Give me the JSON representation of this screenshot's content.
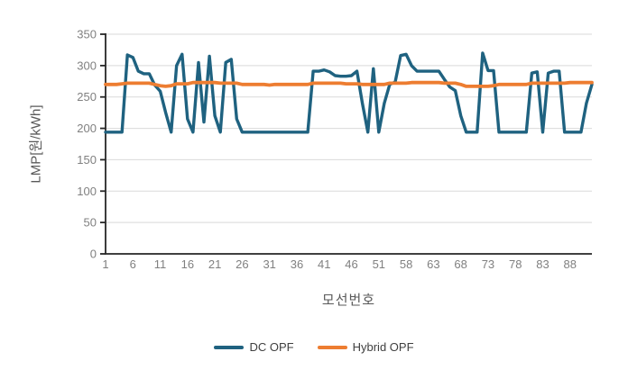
{
  "chart_data": {
    "type": "line",
    "title": "",
    "x_axis": {
      "title": "모선번호",
      "points": 90,
      "tick_positions": [
        1,
        6,
        11,
        16,
        21,
        26,
        31,
        36,
        41,
        46,
        51,
        56,
        61,
        66,
        71,
        76,
        81,
        86
      ],
      "tick_labels": [
        "1",
        "6",
        "11",
        "16",
        "21",
        "26",
        "31",
        "36",
        "41",
        "46",
        "51",
        "58",
        "63",
        "68",
        "73",
        "78",
        "83",
        "88"
      ]
    },
    "y_axis": {
      "title": "LMP[원/kWh]",
      "min": 0,
      "max": 350,
      "step": 50,
      "tick_labels": [
        "0",
        "50",
        "100",
        "150",
        "200",
        "250",
        "300",
        "350"
      ]
    },
    "series": [
      {
        "name": "DC OPF",
        "color": "#1F6280",
        "stroke_width": 3.4,
        "values": [
          194,
          194,
          194,
          194,
          317,
          313,
          291,
          287,
          287,
          269,
          259,
          225,
          194,
          300,
          318,
          215,
          194,
          305,
          210,
          315,
          220,
          194,
          305,
          310,
          215,
          194,
          194,
          194,
          194,
          194,
          194,
          194,
          194,
          194,
          194,
          194,
          194,
          194,
          291,
          291,
          293,
          290,
          284,
          283,
          283,
          284,
          291,
          240,
          194,
          295,
          194,
          240,
          270,
          274,
          316,
          318,
          300,
          291,
          291,
          291,
          291,
          291,
          278,
          266,
          260,
          220,
          194,
          194,
          194,
          320,
          292,
          292,
          194,
          194,
          194,
          194,
          194,
          194,
          288,
          290,
          194,
          288,
          291,
          291,
          194,
          194,
          194,
          194,
          240,
          270
        ]
      },
      {
        "name": "Hybrid OPF",
        "color": "#ED7D31",
        "stroke_width": 3.8,
        "values": [
          270,
          270,
          270,
          271,
          272,
          272,
          272,
          272,
          272,
          270,
          268,
          267,
          268,
          271,
          271,
          271,
          273,
          273,
          273,
          273,
          273,
          272,
          272,
          272,
          272,
          270,
          270,
          270,
          270,
          270,
          269,
          270,
          270,
          270,
          270,
          270,
          270,
          270,
          272,
          272,
          272,
          272,
          272,
          272,
          271,
          271,
          271,
          270,
          270,
          270,
          270,
          270,
          272,
          272,
          272,
          272,
          273,
          273,
          273,
          273,
          273,
          273,
          272,
          272,
          272,
          270,
          267,
          267,
          267,
          267,
          267,
          268,
          270,
          270,
          270,
          270,
          270,
          270,
          272,
          272,
          272,
          272,
          272,
          272,
          272,
          273,
          273,
          273,
          273,
          273
        ]
      }
    ],
    "grid": "horizontal",
    "legend_position": "bottom"
  },
  "colors": {
    "background": "#FFFFFF",
    "grid": "#D9D9D9",
    "axis": "#262626",
    "tick_text": "#808080",
    "title_text": "#595959",
    "legend_text": "#404040"
  }
}
